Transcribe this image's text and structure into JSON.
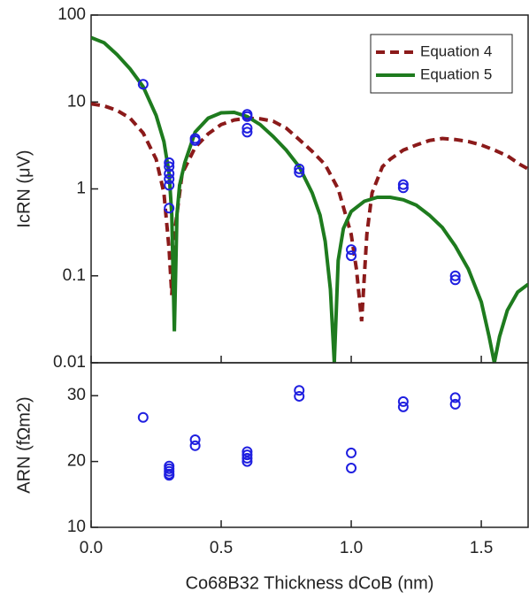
{
  "chart_data": [
    {
      "type": "line",
      "ylog": true,
      "xlim": [
        0,
        1.68
      ],
      "ylim": [
        0.01,
        100
      ],
      "xticks": [
        0,
        0.5,
        1,
        1.5
      ],
      "yticks": [
        0.01,
        0.1,
        1,
        10,
        100
      ],
      "ylabel": "IcRN (μV)",
      "legend": "upper right",
      "series": [
        {
          "name": "Equation 4",
          "type": "line",
          "style": "dashed",
          "color": "#8b1a1a",
          "x": [
            0,
            0.05,
            0.1,
            0.15,
            0.2,
            0.25,
            0.28,
            0.3,
            0.31,
            0.32,
            0.35,
            0.4,
            0.45,
            0.5,
            0.55,
            0.6,
            0.65,
            0.7,
            0.75,
            0.8,
            0.85,
            0.9,
            0.95,
            1.0,
            1.02,
            1.04,
            1.06,
            1.08,
            1.12,
            1.15,
            1.2,
            1.25,
            1.3,
            1.35,
            1.4,
            1.45,
            1.5,
            1.55,
            1.6,
            1.65,
            1.68
          ],
          "values": [
            9.5,
            9,
            8,
            6.5,
            4.4,
            2.2,
            0.9,
            0.2,
            0.06,
            0.3,
            1.5,
            3,
            4.3,
            5.5,
            6.2,
            6.5,
            6.4,
            6,
            5,
            3.7,
            2.7,
            1.9,
            1,
            0.3,
            0.12,
            0.03,
            0.3,
            0.9,
            1.8,
            2.2,
            2.8,
            3.2,
            3.6,
            3.8,
            3.7,
            3.5,
            3.2,
            2.8,
            2.4,
            1.9,
            1.7
          ]
        },
        {
          "name": "Equation 5",
          "type": "line",
          "style": "solid",
          "color": "#1e7b1e",
          "x": [
            0,
            0.05,
            0.1,
            0.15,
            0.2,
            0.25,
            0.28,
            0.3,
            0.31,
            0.32,
            0.33,
            0.34,
            0.36,
            0.4,
            0.45,
            0.5,
            0.55,
            0.6,
            0.65,
            0.7,
            0.75,
            0.8,
            0.85,
            0.88,
            0.9,
            0.92,
            0.935,
            0.95,
            0.97,
            1.0,
            1.05,
            1.1,
            1.15,
            1.2,
            1.25,
            1.3,
            1.35,
            1.4,
            1.45,
            1.5,
            1.53,
            1.55,
            1.57,
            1.6,
            1.64,
            1.68
          ],
          "values": [
            55,
            48,
            35,
            24,
            15,
            7,
            3.5,
            1.5,
            0.5,
            0.023,
            0.5,
            1.1,
            2,
            4.5,
            6.5,
            7.5,
            7.6,
            6.8,
            5.5,
            4,
            2.8,
            1.8,
            0.9,
            0.5,
            0.25,
            0.07,
            0.01,
            0.15,
            0.35,
            0.55,
            0.72,
            0.8,
            0.8,
            0.75,
            0.65,
            0.5,
            0.36,
            0.22,
            0.12,
            0.05,
            0.02,
            0.01,
            0.02,
            0.04,
            0.065,
            0.08
          ]
        },
        {
          "type": "scatter",
          "color": "#1f1fe0",
          "x": [
            0.2,
            0.3,
            0.3,
            0.3,
            0.3,
            0.3,
            0.3,
            0.4,
            0.4,
            0.6,
            0.6,
            0.6,
            0.6,
            0.8,
            0.8,
            1.0,
            1.0,
            1.2,
            1.2,
            1.4,
            1.4
          ],
          "values": [
            16,
            2.0,
            1.8,
            1.5,
            1.3,
            1.1,
            0.6,
            3.8,
            3.6,
            7.2,
            6.8,
            5,
            4.5,
            1.7,
            1.55,
            0.2,
            0.17,
            1.12,
            1.03,
            0.1,
            0.09
          ]
        }
      ]
    },
    {
      "type": "scatter",
      "xlim": [
        0,
        1.68
      ],
      "ylim": [
        10,
        35
      ],
      "xticks": [
        {
          "value": 0,
          "label": "0.0"
        },
        {
          "value": 0.5,
          "label": "0.5"
        },
        {
          "value": 1,
          "label": "1.0"
        },
        {
          "value": 1.5,
          "label": "1.5"
        }
      ],
      "yticks": [
        10,
        20,
        30
      ],
      "xlabel": "Co68B32 Thickness dCoB (nm)",
      "ylabel": "ARN (fΩm2)",
      "series": [
        {
          "type": "scatter",
          "color": "#1f1fe0",
          "x": [
            0.2,
            0.3,
            0.3,
            0.3,
            0.3,
            0.3,
            0.4,
            0.4,
            0.6,
            0.6,
            0.6,
            0.6,
            0.8,
            0.8,
            1.0,
            1.0,
            1.2,
            1.2,
            1.4,
            1.4
          ],
          "values": [
            26.7,
            19.3,
            18.9,
            18.5,
            18.1,
            17.9,
            23.3,
            22.4,
            21.5,
            21.0,
            20.5,
            20.0,
            30.8,
            29.9,
            21.3,
            19.0,
            29.1,
            28.3,
            29.7,
            28.7
          ]
        }
      ]
    }
  ]
}
